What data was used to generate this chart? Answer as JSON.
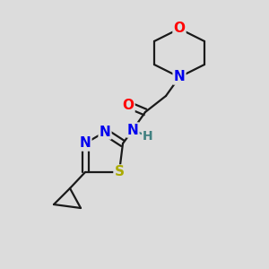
{
  "background_color": "#dcdcdc",
  "bond_color": "#1a1a1a",
  "colors": {
    "O": "#ff0000",
    "N": "#0000ee",
    "S": "#aaaa00",
    "H": "#408080",
    "C": "#1a1a1a"
  },
  "figsize": [
    3.0,
    3.0
  ],
  "dpi": 100,
  "lw": 1.6
}
